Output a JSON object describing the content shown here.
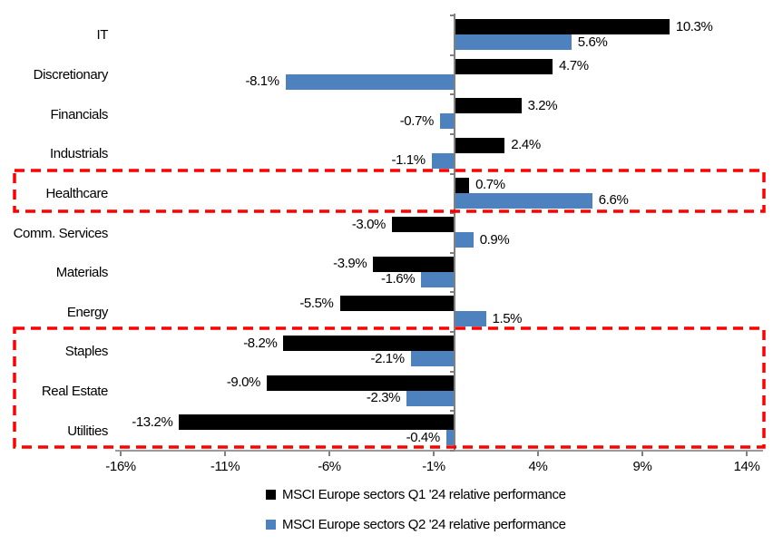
{
  "chart_data": {
    "type": "bar",
    "orientation": "horizontal",
    "title": "",
    "xlabel": "",
    "ylabel": "",
    "grid": false,
    "legend_position": "bottom-center",
    "xlim": [
      -16.3,
      14.8
    ],
    "x_ticks": [
      -16,
      -11,
      -6,
      -1,
      4,
      9,
      14
    ],
    "x_tick_labels": [
      "-16%",
      "-11%",
      "-6%",
      "-1%",
      "4%",
      "9%",
      "14%"
    ],
    "categories": [
      "IT",
      "Discretionary",
      "Financials",
      "Industrials",
      "Healthcare",
      "Comm. Services",
      "Materials",
      "Energy",
      "Staples",
      "Real Estate",
      "Utilities"
    ],
    "series": [
      {
        "name": "MSCI Europe sectors Q1 '24 relative performance",
        "color": "#000000",
        "values": [
          10.3,
          4.7,
          3.2,
          2.4,
          0.7,
          -3.0,
          -3.9,
          -5.5,
          -8.2,
          -9.0,
          -13.2
        ],
        "data_labels": [
          "10.3%",
          "4.7%",
          "3.2%",
          "2.4%",
          "0.7%",
          "-3.0%",
          "-3.9%",
          "-5.5%",
          "-8.2%",
          "-9.0%",
          "-13.2%"
        ]
      },
      {
        "name": "MSCI Europe sectors Q2 '24 relative performance",
        "color": "#4E82BE",
        "values": [
          5.6,
          -8.1,
          -0.7,
          -1.1,
          6.6,
          0.9,
          -1.6,
          1.5,
          -2.1,
          -2.3,
          -0.4
        ],
        "data_labels": [
          "5.6%",
          "-8.1%",
          "-0.7%",
          "-1.1%",
          "6.6%",
          "0.9%",
          "-1.6%",
          "1.5%",
          "-2.1%",
          "-2.3%",
          "-0.4%"
        ]
      }
    ],
    "annotations": [
      {
        "type": "dashed-box",
        "color": "#FF0000",
        "rows": [
          "Healthcare"
        ]
      },
      {
        "type": "dashed-box",
        "color": "#FF0000",
        "rows": [
          "Staples",
          "Real Estate",
          "Utilities"
        ]
      }
    ]
  }
}
